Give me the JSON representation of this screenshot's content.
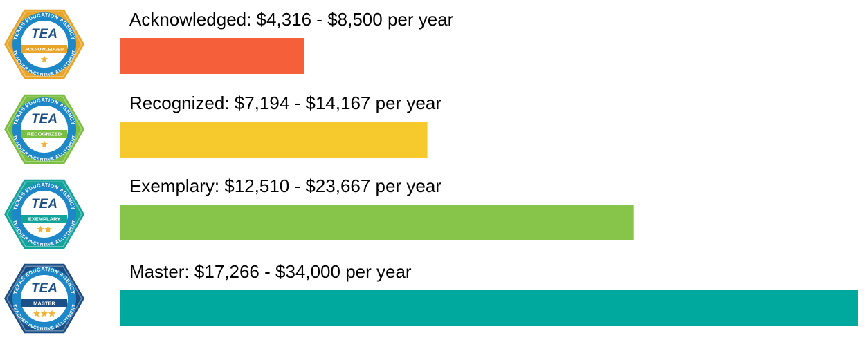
{
  "chart_data": {
    "type": "bar",
    "orientation": "horizontal",
    "title": "",
    "xlabel": "",
    "ylabel": "",
    "grid": false,
    "legend": "none",
    "xlim": [
      0,
      34000
    ],
    "categories": [
      "Acknowledged",
      "Recognized",
      "Exemplary",
      "Master"
    ],
    "values": [
      8500,
      14167,
      23667,
      34000
    ],
    "ranges": [
      {
        "low": 4316,
        "high": 8500
      },
      {
        "low": 7194,
        "high": 14167
      },
      {
        "low": 12510,
        "high": 23667
      },
      {
        "low": 17266,
        "high": 34000
      }
    ],
    "labels": [
      "Acknowledged: $4,316 - $8,500 per year",
      "Recognized: $7,194 - $14,167 per year",
      "Exemplary: $12,510 - $23,667 per year",
      "Master: $17,266 - $34,000 per year"
    ],
    "colors": [
      "#f5603a",
      "#f6c92c",
      "#86c44a",
      "#00a99d"
    ]
  },
  "badges": [
    {
      "name": "acknowledged-badge",
      "agency": "TEXAS EDUCATION AGENCY",
      "program": "TEACHER INCENTIVE ALLOTMENT",
      "logo": "TEA",
      "level": "ACKNOWLEDGED",
      "stars": 1,
      "outer_color": "#e9a52a",
      "inner_color": "#1d87c8",
      "band_color": "#e9a52a",
      "star_color": "#f2b233"
    },
    {
      "name": "recognized-badge",
      "agency": "TEXAS EDUCATION AGENCY",
      "program": "TEACHER INCENTIVE ALLOTMENT",
      "logo": "TEA",
      "level": "RECOGNIZED",
      "stars": 1,
      "outer_color": "#7bbf42",
      "inner_color": "#1d87c8",
      "band_color": "#7bbf42",
      "star_color": "#f2b233"
    },
    {
      "name": "exemplary-badge",
      "agency": "TEXAS EDUCATION AGENCY",
      "program": "TEACHER INCENTIVE ALLOTMENT",
      "logo": "TEA",
      "level": "EXEMPLARY",
      "stars": 2,
      "outer_color": "#14a39a",
      "inner_color": "#1d87c8",
      "band_color": "#14a39a",
      "star_color": "#f2b233"
    },
    {
      "name": "master-badge",
      "agency": "TEXAS EDUCATION AGENCY",
      "program": "TEACHER INCENTIVE ALLOTMENT",
      "logo": "TEA",
      "level": "MASTER",
      "stars": 3,
      "outer_color": "#1b4f86",
      "inner_color": "#1d87c8",
      "band_color": "#1b4f86",
      "star_color": "#f2b233"
    }
  ]
}
